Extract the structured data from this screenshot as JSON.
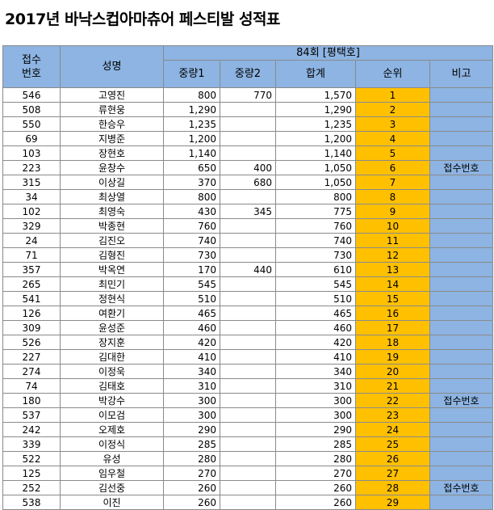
{
  "title": "2017년 바낙스컵아마츄어 페스티발 성적표",
  "headers": {
    "reg_no": "접수\n번호",
    "name": "성명",
    "event": "84회 [평택호]",
    "w1": "중량1",
    "w2": "중량2",
    "total": "합계",
    "rank": "순위",
    "note": "비고"
  },
  "rows": [
    {
      "no": "546",
      "name": "고영진",
      "w1": "800",
      "w2": "770",
      "total": "1,570",
      "rank": "1",
      "note": ""
    },
    {
      "no": "508",
      "name": "류현웅",
      "w1": "1,290",
      "w2": "",
      "total": "1,290",
      "rank": "2",
      "note": ""
    },
    {
      "no": "550",
      "name": "한승우",
      "w1": "1,235",
      "w2": "",
      "total": "1,235",
      "rank": "3",
      "note": ""
    },
    {
      "no": "69",
      "name": "지병준",
      "w1": "1,200",
      "w2": "",
      "total": "1,200",
      "rank": "4",
      "note": ""
    },
    {
      "no": "103",
      "name": "장현호",
      "w1": "1,140",
      "w2": "",
      "total": "1,140",
      "rank": "5",
      "note": ""
    },
    {
      "no": "223",
      "name": "윤창수",
      "w1": "650",
      "w2": "400",
      "total": "1,050",
      "rank": "6",
      "note": "접수번호"
    },
    {
      "no": "315",
      "name": "이상길",
      "w1": "370",
      "w2": "680",
      "total": "1,050",
      "rank": "7",
      "note": ""
    },
    {
      "no": "34",
      "name": "최상열",
      "w1": "800",
      "w2": "",
      "total": "800",
      "rank": "8",
      "note": ""
    },
    {
      "no": "102",
      "name": "최영숙",
      "w1": "430",
      "w2": "345",
      "total": "775",
      "rank": "9",
      "note": ""
    },
    {
      "no": "329",
      "name": "박종현",
      "w1": "760",
      "w2": "",
      "total": "760",
      "rank": "10",
      "note": ""
    },
    {
      "no": "24",
      "name": "김진오",
      "w1": "740",
      "w2": "",
      "total": "740",
      "rank": "11",
      "note": ""
    },
    {
      "no": "71",
      "name": "김형진",
      "w1": "730",
      "w2": "",
      "total": "730",
      "rank": "12",
      "note": ""
    },
    {
      "no": "357",
      "name": "박옥연",
      "w1": "170",
      "w2": "440",
      "total": "610",
      "rank": "13",
      "note": ""
    },
    {
      "no": "265",
      "name": "최민기",
      "w1": "545",
      "w2": "",
      "total": "545",
      "rank": "14",
      "note": ""
    },
    {
      "no": "541",
      "name": "정현식",
      "w1": "510",
      "w2": "",
      "total": "510",
      "rank": "15",
      "note": ""
    },
    {
      "no": "126",
      "name": "여환기",
      "w1": "465",
      "w2": "",
      "total": "465",
      "rank": "16",
      "note": ""
    },
    {
      "no": "309",
      "name": "윤성준",
      "w1": "460",
      "w2": "",
      "total": "460",
      "rank": "17",
      "note": ""
    },
    {
      "no": "526",
      "name": "장지훈",
      "w1": "420",
      "w2": "",
      "total": "420",
      "rank": "18",
      "note": ""
    },
    {
      "no": "227",
      "name": "김대한",
      "w1": "410",
      "w2": "",
      "total": "410",
      "rank": "19",
      "note": ""
    },
    {
      "no": "274",
      "name": "이정욱",
      "w1": "340",
      "w2": "",
      "total": "340",
      "rank": "20",
      "note": ""
    },
    {
      "no": "74",
      "name": "김태호",
      "w1": "310",
      "w2": "",
      "total": "310",
      "rank": "21",
      "note": ""
    },
    {
      "no": "180",
      "name": "박강수",
      "w1": "300",
      "w2": "",
      "total": "300",
      "rank": "22",
      "note": "접수번호"
    },
    {
      "no": "537",
      "name": "이모검",
      "w1": "300",
      "w2": "",
      "total": "300",
      "rank": "23",
      "note": ""
    },
    {
      "no": "242",
      "name": "오제호",
      "w1": "290",
      "w2": "",
      "total": "290",
      "rank": "24",
      "note": ""
    },
    {
      "no": "339",
      "name": "이정식",
      "w1": "285",
      "w2": "",
      "total": "285",
      "rank": "25",
      "note": ""
    },
    {
      "no": "522",
      "name": "유성",
      "w1": "280",
      "w2": "",
      "total": "280",
      "rank": "26",
      "note": ""
    },
    {
      "no": "125",
      "name": "임우철",
      "w1": "270",
      "w2": "",
      "total": "270",
      "rank": "27",
      "note": ""
    },
    {
      "no": "252",
      "name": "김선중",
      "w1": "260",
      "w2": "",
      "total": "260",
      "rank": "28",
      "note": "접수번호"
    },
    {
      "no": "538",
      "name": "이진",
      "w1": "260",
      "w2": "",
      "total": "260",
      "rank": "29",
      "note": ""
    }
  ],
  "colors": {
    "header_bg": "#8db4e2",
    "rank_bg": "#ffc000",
    "note_bg": "#8db4e2"
  }
}
